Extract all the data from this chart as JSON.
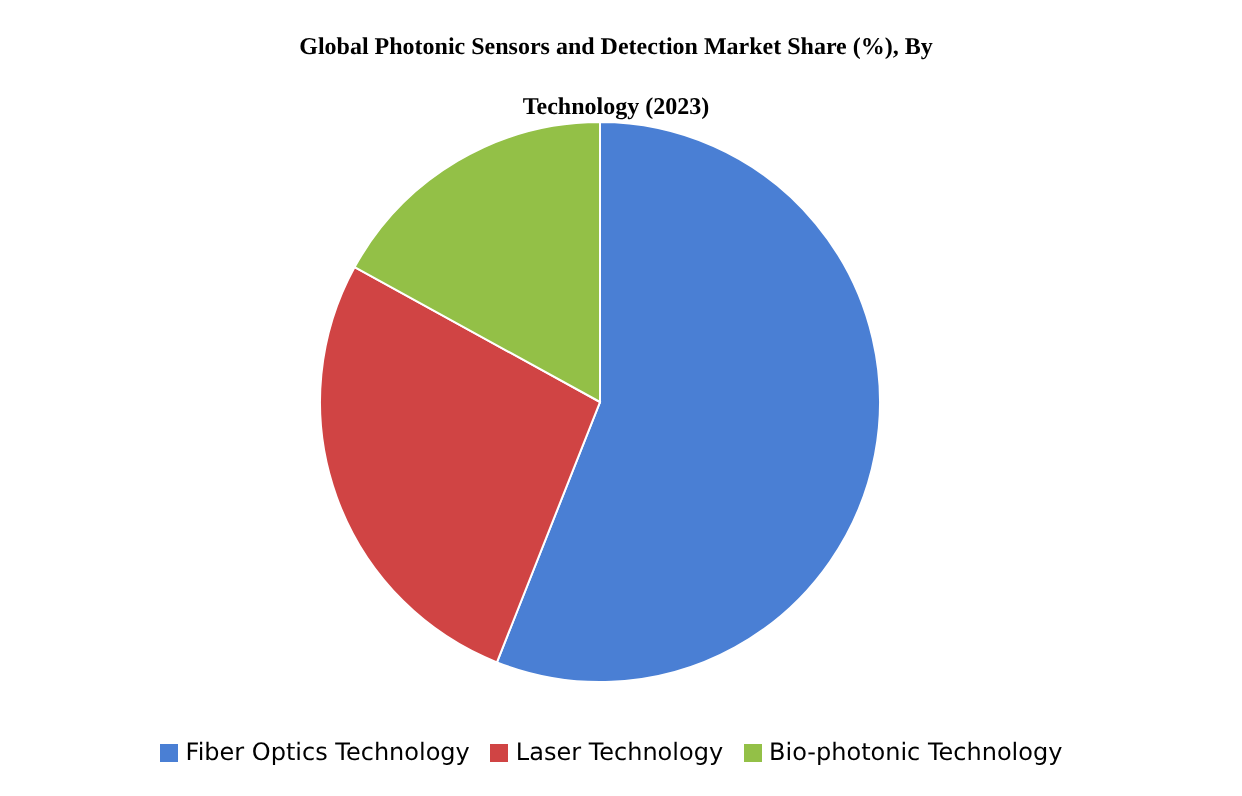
{
  "chart_data": {
    "type": "pie",
    "title": "Global Photonic Sensors and Detection Market Share (%), By Technology (2023)",
    "categories": [
      "Fiber Optics Technology",
      "Laser Technology",
      "Bio-photonic Technology"
    ],
    "values": [
      56,
      27,
      17
    ],
    "colors": [
      "#4a7fd4",
      "#d04444",
      "#93c047"
    ],
    "legend": "bottom"
  }
}
